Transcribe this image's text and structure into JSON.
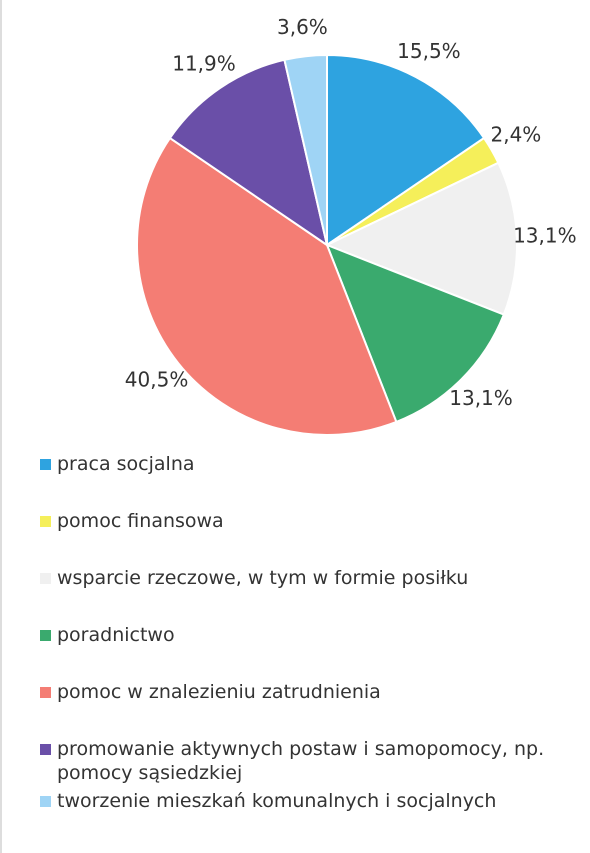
{
  "chart_data": {
    "type": "pie",
    "categories": [
      "praca socjalna",
      "pomoc finansowa",
      "wsparcie rzeczowe, w tym w formie posiłku",
      "poradnictwo",
      "pomoc w znalezieniu zatrudnienia",
      "promowanie aktywnych postaw i samopomocy, np. pomocy sąsiedzkiej",
      "tworzenie mieszkań komunalnych i socjalnych"
    ],
    "values": [
      15.5,
      2.4,
      13.1,
      13.1,
      40.5,
      11.9,
      3.6
    ],
    "value_labels": [
      "15,5%",
      "2,4%",
      "13,1%",
      "13,1%",
      "40,5%",
      "11,9%",
      "3,6%"
    ],
    "colors": [
      "#2ea3e0",
      "#f5ef5a",
      "#f0f0f0",
      "#3aaa6e",
      "#f47d74",
      "#6a4fa8",
      "#9fd4f5"
    ],
    "legend": "bottom"
  }
}
